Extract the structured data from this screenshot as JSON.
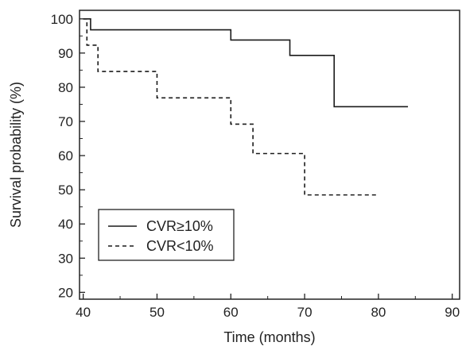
{
  "chart_data": {
    "type": "line",
    "title": "",
    "xlabel": "Time (months)",
    "ylabel": "Survival probability (%)",
    "xlim": [
      39.5,
      91
    ],
    "ylim": [
      18,
      102.5
    ],
    "x_ticks": [
      40,
      50,
      60,
      70,
      80,
      90
    ],
    "y_ticks": [
      20,
      30,
      40,
      50,
      60,
      70,
      80,
      90,
      100
    ],
    "step": true,
    "grid": false,
    "legend_position": "bottom-left",
    "series": [
      {
        "name": "CVR≥10%",
        "line_style": "solid",
        "color": "#1a1a1a",
        "x": [
          40,
          41,
          60,
          68,
          74,
          84
        ],
        "y": [
          100,
          96.8,
          93.8,
          89.3,
          74.3,
          74.3
        ]
      },
      {
        "name": "CVR<10%",
        "line_style": "dashed",
        "color": "#1a1a1a",
        "x": [
          40,
          40.5,
          42,
          50,
          60,
          63,
          70,
          80
        ],
        "y": [
          100,
          92.3,
          84.6,
          76.9,
          69.2,
          60.6,
          48.5,
          48.5
        ]
      }
    ]
  }
}
